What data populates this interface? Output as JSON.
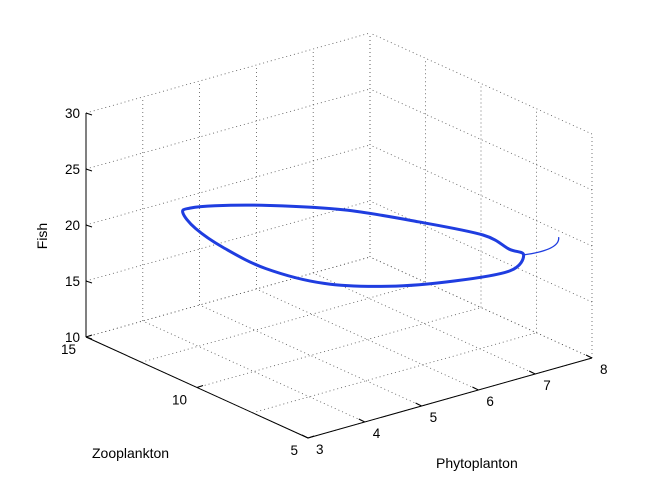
{
  "chart_data": {
    "type": "line",
    "projection": "3d",
    "title": "",
    "xlabel": "Phytoplanton",
    "ylabel": "Zooplankton",
    "zlabel": "Fish",
    "xlim": [
      3,
      8
    ],
    "ylim": [
      5,
      15
    ],
    "zlim": [
      10,
      30
    ],
    "xticks": [
      "3",
      "4",
      "5",
      "6",
      "7",
      "8"
    ],
    "yticks": [
      "5",
      "10",
      "15"
    ],
    "zticks": [
      "10",
      "15",
      "20",
      "25",
      "30"
    ],
    "grid": true,
    "series": [
      {
        "color": "#1f3de0",
        "description": "closed limit cycle approached by a short transient tail",
        "x": [
          7.4,
          7.8,
          7.6,
          7.0,
          6.0,
          5.0,
          4.4,
          4.0,
          3.6,
          3.5,
          3.7,
          4.3,
          5.2,
          6.2,
          7.1,
          7.5,
          7.4
        ],
        "y": [
          7.2,
          9.4,
          11.8,
          13.6,
          14.4,
          14.3,
          13.9,
          13.2,
          11.6,
          10.1,
          8.7,
          7.6,
          7.0,
          6.6,
          6.4,
          6.8,
          7.2
        ],
        "z": [
          18.6,
          17.3,
          16.6,
          16.9,
          18.0,
          19.5,
          20.5,
          21.3,
          21.9,
          21.7,
          20.8,
          19.6,
          18.6,
          18.0,
          17.8,
          18.3,
          18.6
        ]
      }
    ]
  }
}
